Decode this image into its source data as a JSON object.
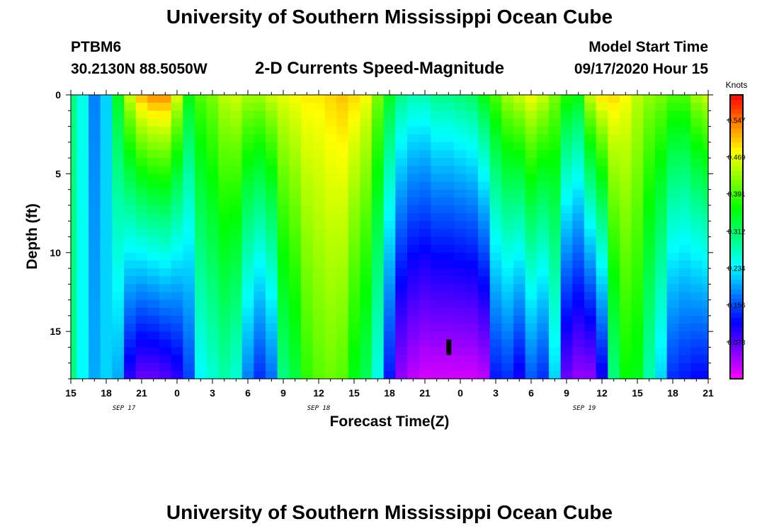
{
  "header": {
    "title": "University of Southern Mississippi Ocean Cube",
    "station_id": "PTBM6",
    "station_coords": "30.2130N 88.5050W",
    "subtitle": "2-D Currents Speed-Magnitude",
    "model_label": "Model Start Time",
    "model_time": "09/17/2020 Hour 15"
  },
  "footer": {
    "title": "University of Southern Mississippi Ocean Cube"
  },
  "chart_data": {
    "type": "heatmap",
    "title": "2-D Currents Speed-Magnitude",
    "xlabel": "Forecast Time(Z)",
    "ylabel": "Depth (ft)",
    "x_range_hours": [
      0,
      54
    ],
    "y_range_ft": [
      0,
      18
    ],
    "y_inverted": true,
    "x_tick_labels": [
      "15",
      "18",
      "21",
      "0",
      "3",
      "6",
      "9",
      "12",
      "15",
      "18",
      "21",
      "0",
      "3",
      "6",
      "9",
      "12",
      "15",
      "18",
      "21"
    ],
    "date_labels": [
      {
        "text": "SEP 17",
        "hour": 4.5
      },
      {
        "text": "SEP 18",
        "hour": 21
      },
      {
        "text": "SEP 19",
        "hour": 43.5
      }
    ],
    "y_ticks": [
      0,
      5,
      10,
      15
    ],
    "colorbar": {
      "title": "Knots",
      "range": [
        0,
        0.6
      ],
      "ticks": [
        0.078,
        0.156,
        0.234,
        0.312,
        0.391,
        0.469,
        0.547
      ]
    },
    "marker": {
      "hour": 32,
      "depth_ft": 16
    },
    "grid": false,
    "legend": "colorbar-right",
    "profile_times": [
      0,
      1,
      2,
      3,
      4,
      5,
      6,
      7,
      8,
      9,
      10,
      11,
      12,
      13,
      14,
      15,
      16,
      17,
      18,
      19,
      20,
      21,
      22,
      23,
      24,
      25,
      26,
      27,
      28,
      29,
      30,
      31,
      32,
      33,
      34,
      35,
      36,
      37,
      38,
      39,
      40,
      41,
      42,
      43,
      44,
      45,
      46,
      47,
      48,
      49,
      50,
      51,
      52,
      53,
      54
    ],
    "surface_speed": [
      0.3,
      0.25,
      0.18,
      0.22,
      0.35,
      0.46,
      0.52,
      0.54,
      0.54,
      0.47,
      0.36,
      0.4,
      0.42,
      0.45,
      0.46,
      0.44,
      0.44,
      0.46,
      0.47,
      0.48,
      0.49,
      0.49,
      0.5,
      0.51,
      0.5,
      0.48,
      0.42,
      0.35,
      0.3,
      0.28,
      0.28,
      0.3,
      0.3,
      0.31,
      0.32,
      0.36,
      0.4,
      0.44,
      0.46,
      0.48,
      0.46,
      0.42,
      0.38,
      0.36,
      0.46,
      0.5,
      0.5,
      0.48,
      0.45,
      0.43,
      0.42,
      0.4,
      0.4,
      0.44,
      0.46
    ],
    "bottom_speed": [
      0.3,
      0.24,
      0.2,
      0.22,
      0.2,
      0.1,
      0.07,
      0.07,
      0.08,
      0.1,
      0.15,
      0.24,
      0.26,
      0.28,
      0.26,
      0.18,
      0.14,
      0.17,
      0.3,
      0.33,
      0.38,
      0.4,
      0.41,
      0.4,
      0.35,
      0.32,
      0.25,
      0.13,
      0.05,
      0.03,
      0.02,
      0.02,
      0.02,
      0.02,
      0.02,
      0.03,
      0.13,
      0.14,
      0.11,
      0.16,
      0.14,
      0.22,
      0.07,
      0.05,
      0.05,
      0.11,
      0.3,
      0.36,
      0.35,
      0.28,
      0.22,
      0.14,
      0.13,
      0.12,
      0.12
    ]
  }
}
